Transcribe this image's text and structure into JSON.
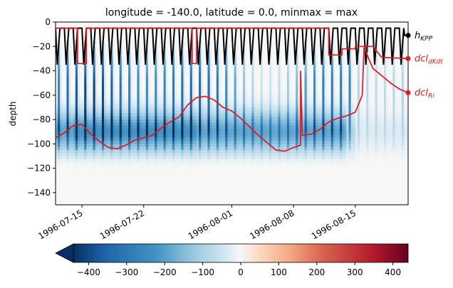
{
  "chart_data": {
    "type": "heatmap",
    "title": "longitude = -140.0, latitude = 0.0, minmax = max",
    "xlabel": "",
    "ylabel": "depth",
    "x_axis": {
      "type": "time",
      "range": [
        "1996-07-12",
        "1996-08-21"
      ],
      "ticks": [
        "1996-07-15",
        "1996-07-22",
        "1996-08-01",
        "1996-08-08",
        "1996-08-15"
      ],
      "tick_rotation": 30
    },
    "y_axis": {
      "range": [
        -150,
        0
      ],
      "ticks": [
        0,
        -20,
        -40,
        -60,
        -80,
        -100,
        -120,
        -140
      ]
    },
    "colorbar": {
      "range": [
        -440,
        440
      ],
      "ticks": [
        -400,
        -300,
        -200,
        -100,
        0,
        100,
        200,
        300,
        400
      ],
      "colormap": "RdBu_r",
      "extend": "min",
      "orientation": "horizontal"
    },
    "series": [
      {
        "name": "h_KPP",
        "label_main": "h",
        "label_sub": "KPP",
        "color": "#000000",
        "note": "strong diurnal cycle between about -5 m (day) and about -35 m (night)",
        "end_value": -11
      },
      {
        "name": "dcl_dKdt",
        "label_main": "dcl",
        "label_sub": "dKdt",
        "color": "#e8141b",
        "x": [
          "1996-07-12",
          "1996-07-14.5",
          "1996-07-14.5",
          "1996-07-15.5",
          "1996-07-15.5",
          "1996-07-27.5",
          "1996-07-27.5",
          "1996-07-28",
          "1996-07-28",
          "1996-08-12",
          "1996-08-12",
          "1996-08-13.5",
          "1996-08-13.5",
          "1996-08-15",
          "1996-08-15",
          "1996-08-17",
          "1996-08-18",
          "1996-08-21"
        ],
        "y": [
          -5,
          -5,
          -34,
          -34,
          -5,
          -5,
          -34,
          -34,
          -5,
          -5,
          -27,
          -27,
          -22,
          -22,
          -20,
          -20,
          -29,
          -30
        ]
      },
      {
        "name": "dcl_Ri",
        "label_main": "dcl",
        "label_sub": "Ri",
        "color": "#e8141b",
        "x": [
          "1996-07-12",
          "1996-07-13",
          "1996-07-14",
          "1996-07-15",
          "1996-07-16",
          "1996-07-17",
          "1996-07-18",
          "1996-07-19",
          "1996-07-20",
          "1996-07-21",
          "1996-07-22",
          "1996-07-23",
          "1996-07-24",
          "1996-07-25",
          "1996-07-26",
          "1996-07-27",
          "1996-07-28",
          "1996-07-29",
          "1996-07-30",
          "1996-07-31",
          "1996-08-01",
          "1996-08-02",
          "1996-08-03",
          "1996-08-04",
          "1996-08-05",
          "1996-08-06",
          "1996-08-07",
          "1996-08-08",
          "1996-08-08.8",
          "1996-08-08.8",
          "1996-08-09",
          "1996-08-10",
          "1996-08-11",
          "1996-08-12",
          "1996-08-13",
          "1996-08-14",
          "1996-08-15",
          "1996-08-15.8",
          "1996-08-16",
          "1996-08-17",
          "1996-08-18",
          "1996-08-19",
          "1996-08-20",
          "1996-08-21"
        ],
        "y": [
          -95,
          -91,
          -85,
          -84,
          -92,
          -98,
          -103,
          -104,
          -101,
          -97,
          -95,
          -93,
          -87,
          -82,
          -78,
          -68,
          -62,
          -61,
          -64,
          -70,
          -73,
          -79,
          -86,
          -93,
          -99,
          -105,
          -106,
          -103,
          -101,
          -40,
          -93,
          -92,
          -88,
          -82,
          -79,
          -77,
          -74,
          -60,
          -21,
          -38,
          -44,
          -50,
          -55,
          -58
        ]
      }
    ],
    "heatmap_note": "negative values (blue) in diurnal bands mostly between -20 and -105 m, strongest near -90 m; near zero below about -110 m"
  }
}
